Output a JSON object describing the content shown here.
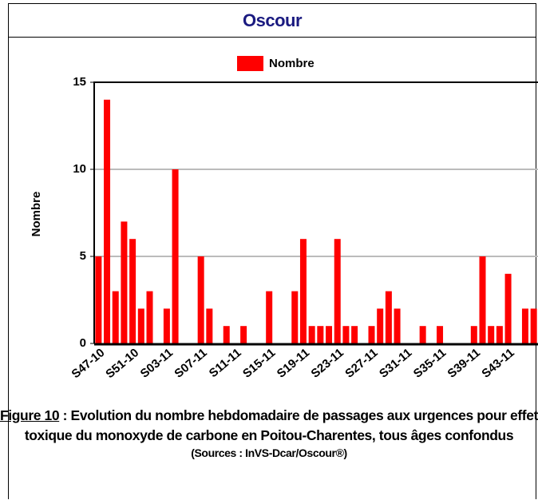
{
  "header": "Oscour",
  "chart_data": {
    "type": "bar",
    "legend": "Nombre",
    "ylabel": "Nombre",
    "color": "#ff0000",
    "categories": [
      "S47-10",
      null,
      null,
      null,
      "S51-10",
      null,
      null,
      null,
      "S03-11",
      null,
      null,
      null,
      "S07-11",
      null,
      null,
      null,
      "S11-11",
      null,
      null,
      null,
      "S15-11",
      null,
      null,
      null,
      "S19-11",
      null,
      null,
      null,
      "S23-11",
      null,
      null,
      null,
      "S27-11",
      null,
      null,
      null,
      "S31-11",
      null,
      null,
      null,
      "S35-11",
      null,
      null,
      null,
      "S39-11",
      null,
      null,
      null,
      "S43-11",
      null,
      null,
      null
    ],
    "values": [
      5,
      14,
      3,
      7,
      6,
      2,
      3,
      0,
      2,
      10,
      0,
      0,
      5,
      2,
      0,
      1,
      0,
      1,
      0,
      0,
      3,
      0,
      0,
      3,
      6,
      1,
      1,
      1,
      6,
      1,
      1,
      0,
      1,
      2,
      3,
      2,
      0,
      0,
      1,
      0,
      1,
      0,
      0,
      0,
      1,
      5,
      1,
      1,
      4,
      0,
      2,
      2
    ],
    "ylim": [
      0,
      15
    ],
    "yticks": [
      0,
      5,
      10,
      15
    ],
    "grid": true
  },
  "caption": {
    "figure": "Figure 10",
    "text": ": Evolution du nombre hebdomadaire de passages aux urgences pour effet toxique du monoxyde de carbone en Poitou-Charentes, tous âges confondus",
    "sources": "(Sources : InVS-Dcar/Oscour®)"
  }
}
